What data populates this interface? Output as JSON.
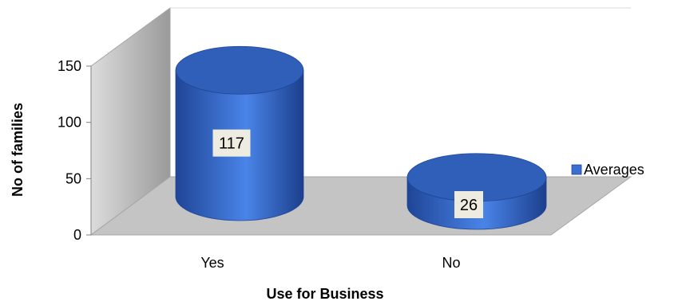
{
  "chart_data": {
    "type": "bar",
    "style": "3d-cylinder",
    "title": "",
    "xlabel": "Use  for Business",
    "ylabel": "No of families",
    "categories": [
      "Yes",
      "No"
    ],
    "series": [
      {
        "name": "Averages",
        "values": [
          117,
          26
        ]
      }
    ],
    "ylim": [
      0,
      150
    ],
    "yticks": [
      0,
      50,
      100,
      150
    ],
    "data_labels": [
      "117",
      "26"
    ],
    "legend": {
      "position": "right"
    },
    "grid": false,
    "colors": {
      "series": "#3a6fd0",
      "series_dark": "#1f4596",
      "series_top": "#2f5fb8",
      "wall": "#bfbfbf",
      "floor": "#c4c4c4",
      "label_box": "#eeece1"
    }
  }
}
